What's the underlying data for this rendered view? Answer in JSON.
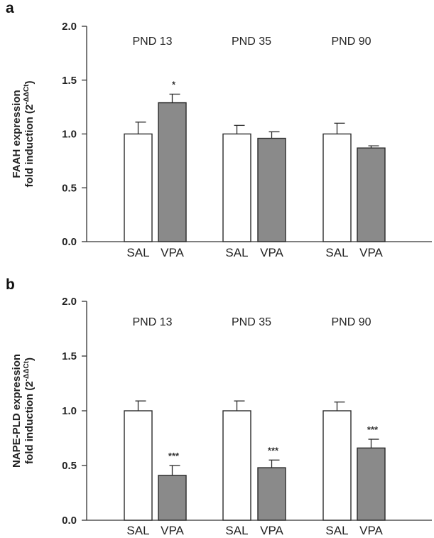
{
  "chart_data": [
    {
      "panel": "a",
      "type": "bar",
      "ylabel_line1": "FAAH expression",
      "ylabel_line2_prefix": "fold induction (2",
      "ylabel_line2_sup": "-ΔΔCt",
      "ylabel_line2_suffix": ")",
      "ylim": [
        0,
        2.0
      ],
      "yticks": [
        "0.0",
        "0.5",
        "1.0",
        "1.5",
        "2.0"
      ],
      "grid": false,
      "groups": [
        {
          "label": "PND 13",
          "bars": [
            {
              "category": "SAL",
              "value": 1.0,
              "error": 0.11,
              "significance": ""
            },
            {
              "category": "VPA",
              "value": 1.29,
              "error": 0.08,
              "significance": "*"
            }
          ]
        },
        {
          "label": "PND 35",
          "bars": [
            {
              "category": "SAL",
              "value": 1.0,
              "error": 0.08,
              "significance": ""
            },
            {
              "category": "VPA",
              "value": 0.96,
              "error": 0.06,
              "significance": ""
            }
          ]
        },
        {
          "label": "PND 90",
          "bars": [
            {
              "category": "SAL",
              "value": 1.0,
              "error": 0.1,
              "significance": ""
            },
            {
              "category": "VPA",
              "value": 0.87,
              "error": 0.02,
              "significance": ""
            }
          ]
        }
      ]
    },
    {
      "panel": "b",
      "type": "bar",
      "ylabel_line1": "NAPE-PLD expression",
      "ylabel_line2_prefix": "fold induction (2",
      "ylabel_line2_sup": "-ΔΔCt",
      "ylabel_line2_suffix": ")",
      "ylim": [
        0,
        2.0
      ],
      "yticks": [
        "0.0",
        "0.5",
        "1.0",
        "1.5",
        "2.0"
      ],
      "grid": false,
      "groups": [
        {
          "label": "PND 13",
          "bars": [
            {
              "category": "SAL",
              "value": 1.0,
              "error": 0.09,
              "significance": ""
            },
            {
              "category": "VPA",
              "value": 0.41,
              "error": 0.09,
              "significance": "***"
            }
          ]
        },
        {
          "label": "PND 35",
          "bars": [
            {
              "category": "SAL",
              "value": 1.0,
              "error": 0.09,
              "significance": ""
            },
            {
              "category": "VPA",
              "value": 0.48,
              "error": 0.07,
              "significance": "***"
            }
          ]
        },
        {
          "label": "PND 90",
          "bars": [
            {
              "category": "SAL",
              "value": 1.0,
              "error": 0.08,
              "significance": ""
            },
            {
              "category": "VPA",
              "value": 0.66,
              "error": 0.08,
              "significance": "***"
            }
          ]
        }
      ]
    }
  ],
  "colors": {
    "SAL": "#ffffff",
    "VPA": "#8a8a8a",
    "axis": "#333333",
    "outline": "#2a2a2a"
  }
}
